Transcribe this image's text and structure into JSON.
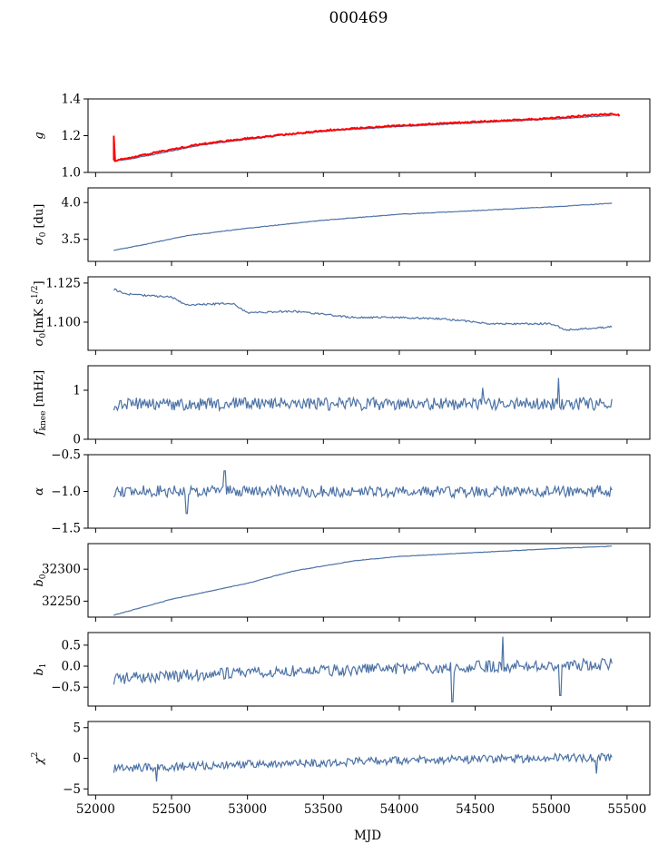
{
  "figure": {
    "title": "000469",
    "xlabel": "MJD"
  },
  "chart_data": {
    "type": "line",
    "title": "000469",
    "xlabel": "MJD",
    "xlim": [
      51950,
      55650
    ],
    "xticks": [
      52000,
      52500,
      53000,
      53500,
      54000,
      54500,
      55000,
      55500
    ],
    "x_range": [
      52120,
      55400
    ],
    "series_color": "#4c72a6",
    "highlight_color": "#ff0000",
    "panels": [
      {
        "name": "g",
        "ylabel_main": "g",
        "ylabel_sub": "",
        "ylim": [
          1.0,
          1.4
        ],
        "yticks": [
          1.0,
          1.2,
          1.4
        ],
        "ytick_labels": [
          "1.0",
          "1.2",
          "1.4"
        ],
        "series": [
          {
            "name": "g",
            "color": "#4c72a6",
            "noise": 0.002,
            "x": [
              52120,
              52200,
              52400,
              52700,
              53000,
              53300,
              53600,
              54000,
              54500,
              55000,
              55400
            ],
            "y": [
              1.065,
              1.07,
              1.1,
              1.15,
              1.18,
              1.21,
              1.23,
              1.25,
              1.27,
              1.29,
              1.31
            ]
          },
          {
            "name": "g (flagged)",
            "color": "#ff0000",
            "noise": 0.004,
            "x": [
              52120,
              52120,
              52125,
              52200,
              52400,
              52700,
              53000,
              53300,
              53600,
              54000,
              54500,
              55000,
              55400,
              55450
            ],
            "y": [
              1.2,
              1.07,
              1.065,
              1.075,
              1.11,
              1.155,
              1.185,
              1.21,
              1.235,
              1.255,
              1.275,
              1.295,
              1.32,
              1.31
            ]
          }
        ]
      },
      {
        "name": "sigma0",
        "ylabel_main": "σ",
        "ylabel_sub": "0",
        "ylabel_rest": " [du]",
        "ylim": [
          3.2,
          4.2
        ],
        "yticks": [
          3.5,
          4.0
        ],
        "ytick_labels": [
          "3.5",
          "4.0"
        ],
        "series": [
          {
            "name": "sigma0",
            "color": "#4c72a6",
            "noise": 0.004,
            "x": [
              52120,
              52300,
              52600,
              53000,
              53500,
              54000,
              54500,
              55000,
              55400
            ],
            "y": [
              3.35,
              3.42,
              3.55,
              3.65,
              3.76,
              3.84,
              3.89,
              3.94,
              3.99
            ]
          }
        ]
      },
      {
        "name": "sigma0-mk",
        "ylabel_main": "σ",
        "ylabel_sub": "0",
        "ylabel_rest": "[mK s",
        "ylabel_sup": "1/2",
        "ylabel_end": "]",
        "ylim": [
          1.082,
          1.129
        ],
        "yticks": [
          1.1,
          1.125
        ],
        "ytick_labels": [
          "1.100",
          "1.125"
        ],
        "series": [
          {
            "name": "sigma0-mk",
            "color": "#4c72a6",
            "noise": 0.0006,
            "x": [
              52120,
              52200,
              52500,
              52600,
              52900,
              53000,
              53300,
              53500,
              53700,
              54000,
              54300,
              54600,
              55000,
              55100,
              55400
            ],
            "y": [
              1.121,
              1.118,
              1.116,
              1.111,
              1.112,
              1.106,
              1.107,
              1.105,
              1.103,
              1.103,
              1.102,
              1.099,
              1.099,
              1.095,
              1.097
            ]
          }
        ]
      },
      {
        "name": "fknee",
        "ylabel_main": "f",
        "ylabel_sub": "knee",
        "ylabel_rest": " [mHz]",
        "ylim": [
          0,
          1.5
        ],
        "yticks": [
          0,
          1
        ],
        "ytick_labels": [
          "0",
          "1"
        ],
        "series": [
          {
            "name": "fknee",
            "color": "#4c72a6",
            "noise": 0.13,
            "seed": 11,
            "x": [
              52120,
              55400
            ],
            "y": [
              0.72,
              0.72
            ],
            "spikes": [
              {
                "x": 55050,
                "y": 1.25
              },
              {
                "x": 54550,
                "y": 1.05
              }
            ]
          }
        ]
      },
      {
        "name": "alpha",
        "ylabel_main": "α",
        "ylabel_sub": "",
        "ylim": [
          -1.5,
          -0.5
        ],
        "yticks": [
          -1.5,
          -1.0,
          -0.5
        ],
        "ytick_labels": [
          "−1.5",
          "−1.0",
          "−0.5"
        ],
        "series": [
          {
            "name": "alpha",
            "color": "#4c72a6",
            "noise": 0.08,
            "seed": 23,
            "x": [
              52120,
              55400
            ],
            "y": [
              -1.0,
              -1.0
            ],
            "spikes": [
              {
                "x": 52850,
                "y": -0.72
              },
              {
                "x": 52600,
                "y": -1.3
              }
            ]
          }
        ]
      },
      {
        "name": "b0",
        "ylabel_main": "b",
        "ylabel_sub": "0",
        "ylim": [
          32225,
          32340
        ],
        "yticks": [
          32250,
          32300
        ],
        "ytick_labels": [
          "32250",
          "32300"
        ],
        "series": [
          {
            "name": "b0",
            "color": "#4c72a6",
            "noise": 0.4,
            "x": [
              52120,
              52500,
              53000,
              53300,
              53700,
              54000,
              54500,
              55000,
              55400
            ],
            "y": [
              32228,
              32253,
              32278,
              32297,
              32313,
              32320,
              32326,
              32332,
              32336
            ]
          }
        ]
      },
      {
        "name": "b1",
        "ylabel_main": "b",
        "ylabel_sub": "1",
        "ylim": [
          -0.95,
          0.8
        ],
        "yticks": [
          -0.5,
          0.0,
          0.5
        ],
        "ytick_labels": [
          "−0.5",
          "0.0",
          "0.5"
        ],
        "series": [
          {
            "name": "b1",
            "color": "#4c72a6",
            "noise": 0.14,
            "seed": 37,
            "x": [
              52120,
              53000,
              54000,
              55400
            ],
            "y": [
              -0.3,
              -0.15,
              -0.05,
              0.05
            ],
            "spikes": [
              {
                "x": 54350,
                "y": -0.85
              },
              {
                "x": 54680,
                "y": 0.7
              },
              {
                "x": 55060,
                "y": -0.7
              }
            ]
          }
        ]
      },
      {
        "name": "chi2",
        "ylabel_main": "χ",
        "ylabel_sub": "",
        "ylabel_sup": "2",
        "ylim": [
          -6,
          6
        ],
        "yticks": [
          -5,
          0,
          5
        ],
        "ytick_labels": [
          "−5",
          "0",
          "5"
        ],
        "series": [
          {
            "name": "chi2",
            "color": "#4c72a6",
            "noise": 0.7,
            "seed": 53,
            "x": [
              52120,
              53000,
              54000,
              55400
            ],
            "y": [
              -1.7,
              -1.0,
              -0.4,
              0.2
            ],
            "spikes": [
              {
                "x": 52400,
                "y": -3.8
              },
              {
                "x": 55300,
                "y": -2.5
              }
            ]
          }
        ]
      }
    ]
  }
}
